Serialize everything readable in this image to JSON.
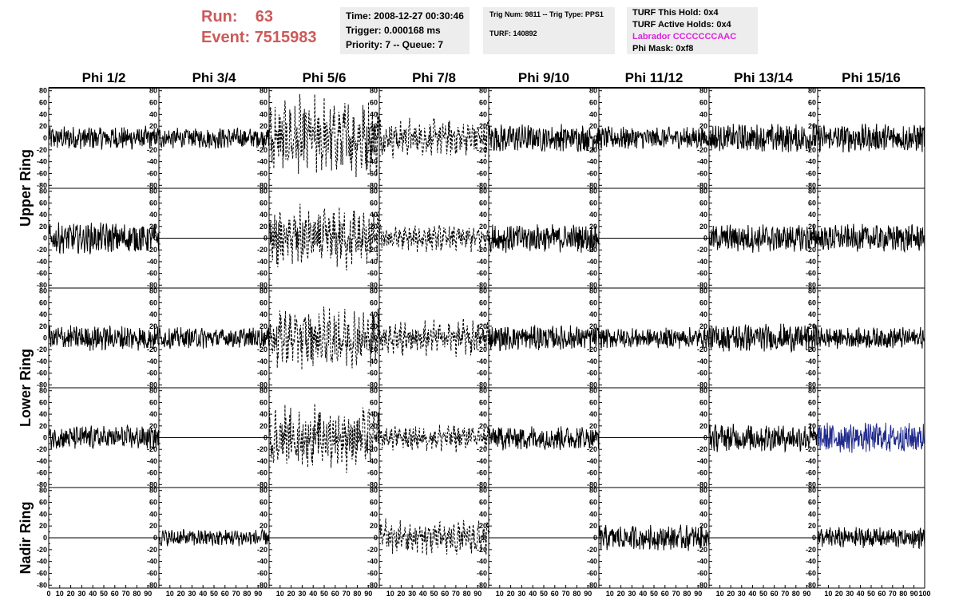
{
  "header": {
    "run_label": "Run:",
    "run_value": "63",
    "event_label": "Event:",
    "event_value": "7515983",
    "time": "Time: 2008-12-27 00:30:46",
    "trigger": "Trigger: 0.000168 ms",
    "priority": "Priority: 7 -- Queue: 7",
    "trig_num": "Trig Num: 9811 -- Trig Type: PPS1",
    "turf": "TURF: 140892",
    "turf_this_hold": "TURF This Hold: 0x4",
    "turf_active_holds": "TURF Active Holds: 0x4",
    "labrador": "Labrador CCCCCCCAAC",
    "phi_mask": "Phi Mask: 0xf8"
  },
  "colors": {
    "run_text": "#cc5a5a",
    "info_bg": "#ededed",
    "labrador_text": "#e020e0",
    "trace_default": "#000000",
    "trace_highlight": "#1f2a8c"
  },
  "chart_data": {
    "type": "line",
    "columns": [
      "Phi 1/2",
      "Phi 3/4",
      "Phi 5/6",
      "Phi 7/8",
      "Phi 9/10",
      "Phi 11/12",
      "Phi 13/14",
      "Phi 15/16"
    ],
    "ring_labels": [
      {
        "label": "Upper Ring",
        "rows": [
          0,
          1
        ]
      },
      {
        "label": "Lower Ring",
        "rows": [
          2,
          3
        ]
      },
      {
        "label": "Nadir Ring",
        "rows": [
          4,
          4
        ]
      }
    ],
    "rows": 5,
    "xlim": [
      0,
      100
    ],
    "ylim": [
      -85,
      85
    ],
    "y_ticks": [
      -80,
      -60,
      -40,
      -20,
      0,
      20,
      40,
      60,
      80
    ],
    "x_ticks": [
      0,
      10,
      20,
      30,
      40,
      50,
      60,
      70,
      80,
      90,
      100
    ],
    "panels": [
      [
        {
          "amp": 17,
          "style": "solid"
        },
        {
          "amp": 15,
          "style": "solid"
        },
        {
          "amp": 44,
          "style": "dashed"
        },
        {
          "amp": 22,
          "style": "dashed"
        },
        {
          "amp": 20,
          "style": "solid"
        },
        {
          "amp": 16,
          "style": "solid"
        },
        {
          "amp": 20,
          "style": "solid"
        },
        {
          "amp": 20,
          "style": "solid"
        }
      ],
      [
        {
          "amp": 22,
          "style": "solid"
        },
        {
          "amp": 0,
          "style": "flat"
        },
        {
          "amp": 35,
          "style": "dashed"
        },
        {
          "amp": 15,
          "style": "dashed"
        },
        {
          "amp": 20,
          "style": "solid"
        },
        {
          "amp": 0,
          "style": "flat"
        },
        {
          "amp": 20,
          "style": "solid"
        },
        {
          "amp": 20,
          "style": "solid"
        }
      ],
      [
        {
          "amp": 18,
          "style": "solid"
        },
        {
          "amp": 15,
          "style": "solid"
        },
        {
          "amp": 35,
          "style": "dashed"
        },
        {
          "amp": 20,
          "style": "dashed"
        },
        {
          "amp": 18,
          "style": "solid"
        },
        {
          "amp": 15,
          "style": "solid"
        },
        {
          "amp": 20,
          "style": "solid"
        },
        {
          "amp": 15,
          "style": "solid"
        }
      ],
      [
        {
          "amp": 17,
          "style": "solid"
        },
        {
          "amp": 0,
          "style": "flat"
        },
        {
          "amp": 35,
          "style": "dashed"
        },
        {
          "amp": 15,
          "style": "dashed"
        },
        {
          "amp": 18,
          "style": "solid"
        },
        {
          "amp": 0,
          "style": "flat"
        },
        {
          "amp": 20,
          "style": "solid"
        },
        {
          "amp": 22,
          "style": "highlight"
        }
      ],
      [
        {
          "amp": 0,
          "style": "flat"
        },
        {
          "amp": 12,
          "style": "solid"
        },
        {
          "amp": 0,
          "style": "flat"
        },
        {
          "amp": 20,
          "style": "dashed"
        },
        {
          "amp": 0,
          "style": "flat"
        },
        {
          "amp": 18,
          "style": "solid"
        },
        {
          "amp": 0,
          "style": "flat"
        },
        {
          "amp": 15,
          "style": "solid"
        }
      ]
    ]
  }
}
